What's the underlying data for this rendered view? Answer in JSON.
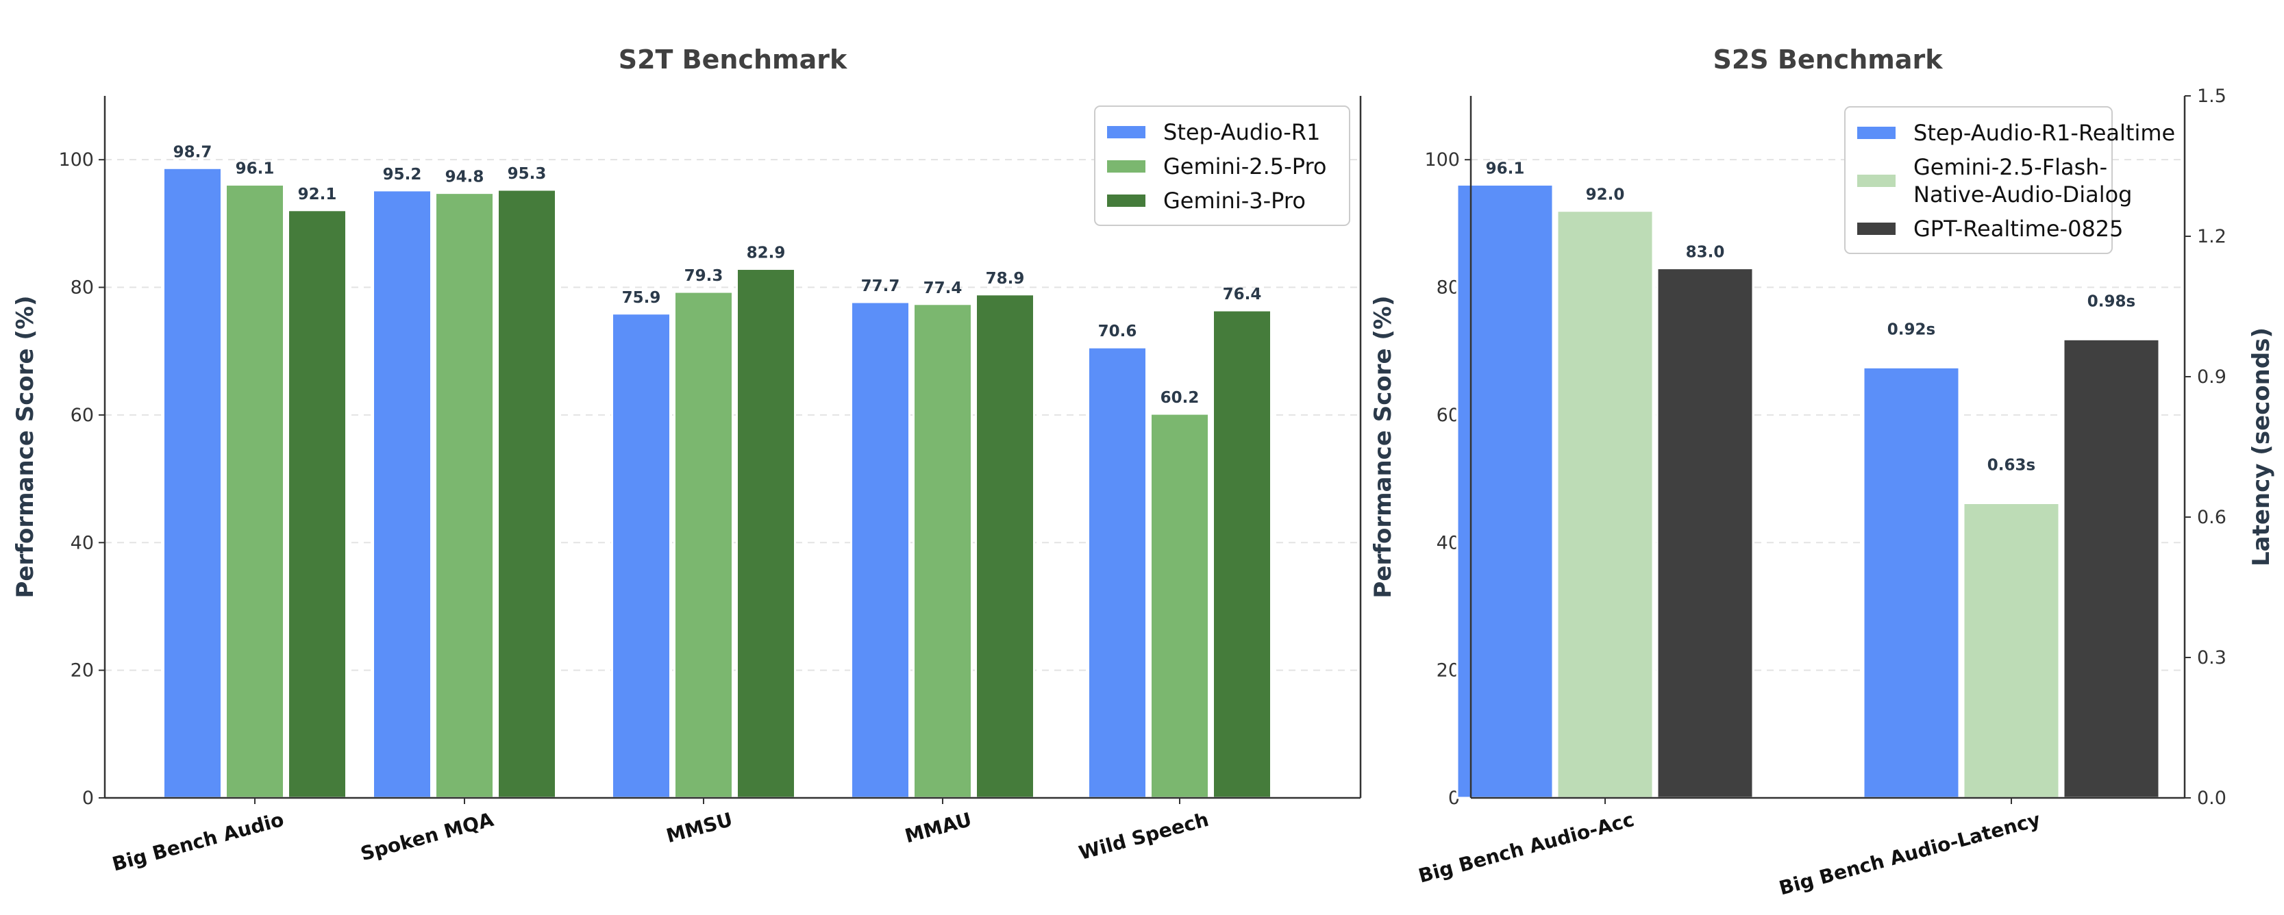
{
  "chart_data": [
    {
      "type": "bar",
      "title": "S2T Benchmark",
      "ylabel": "Performance Score (%)",
      "xlabel": "",
      "ylim": [
        0,
        110
      ],
      "yticks": [
        "0",
        "20",
        "40",
        "60",
        "80",
        "100"
      ],
      "grid": true,
      "legend_position": "top-right",
      "categories": [
        "Big Bench Audio",
        "Spoken MQA",
        "MMSU",
        "MMAU",
        "Wild Speech"
      ],
      "series": [
        {
          "name": "Step-Audio-R1",
          "color": "#5b8ff9",
          "values": [
            98.7,
            95.2,
            75.9,
            77.7,
            70.6
          ],
          "labels": [
            "98.7",
            "95.2",
            "75.9",
            "77.7",
            "70.6"
          ]
        },
        {
          "name": "Gemini-2.5-Pro",
          "color": "#7bb76f",
          "values": [
            96.1,
            94.8,
            79.3,
            77.4,
            60.2
          ],
          "labels": [
            "96.1",
            "94.8",
            "79.3",
            "77.4",
            "60.2"
          ]
        },
        {
          "name": "Gemini-3-Pro",
          "color": "#457c3b",
          "values": [
            92.1,
            95.3,
            82.9,
            78.9,
            76.4
          ],
          "labels": [
            "92.1",
            "95.3",
            "82.9",
            "78.9",
            "76.4"
          ]
        }
      ]
    },
    {
      "type": "bar",
      "title": "S2S Benchmark",
      "ylabel": "Performance Score (%)",
      "y2label": "Latency (seconds)",
      "ylim": [
        0,
        110
      ],
      "y2lim": [
        0,
        1.5
      ],
      "yticks": [
        "0",
        "20",
        "40",
        "60",
        "80",
        "100"
      ],
      "y2ticks": [
        "0.0",
        "0.3",
        "0.6",
        "0.9",
        "1.2",
        "1.5"
      ],
      "grid": true,
      "legend_position": "top-right",
      "categories": [
        "Big Bench Audio-Acc",
        "Big Bench Audio-Latency"
      ],
      "series": [
        {
          "name": "Step-Audio-R1-Realtime",
          "color": "#5b8ff9",
          "values": [
            96.1,
            0.92
          ],
          "labels": [
            "96.1",
            "0.92s"
          ]
        },
        {
          "name": "Gemini-2.5-Flash-Native-Audio-Dialog",
          "legend_lines": [
            "Gemini-2.5-Flash-",
            "Native-Audio-Dialog"
          ],
          "color": "#bddcb6",
          "values": [
            92.0,
            0.63
          ],
          "labels": [
            "92.0",
            "0.63s"
          ]
        },
        {
          "name": "GPT-Realtime-0825",
          "color": "#404040",
          "values": [
            83.0,
            0.98
          ],
          "labels": [
            "83.0",
            "0.98s"
          ]
        }
      ]
    }
  ]
}
